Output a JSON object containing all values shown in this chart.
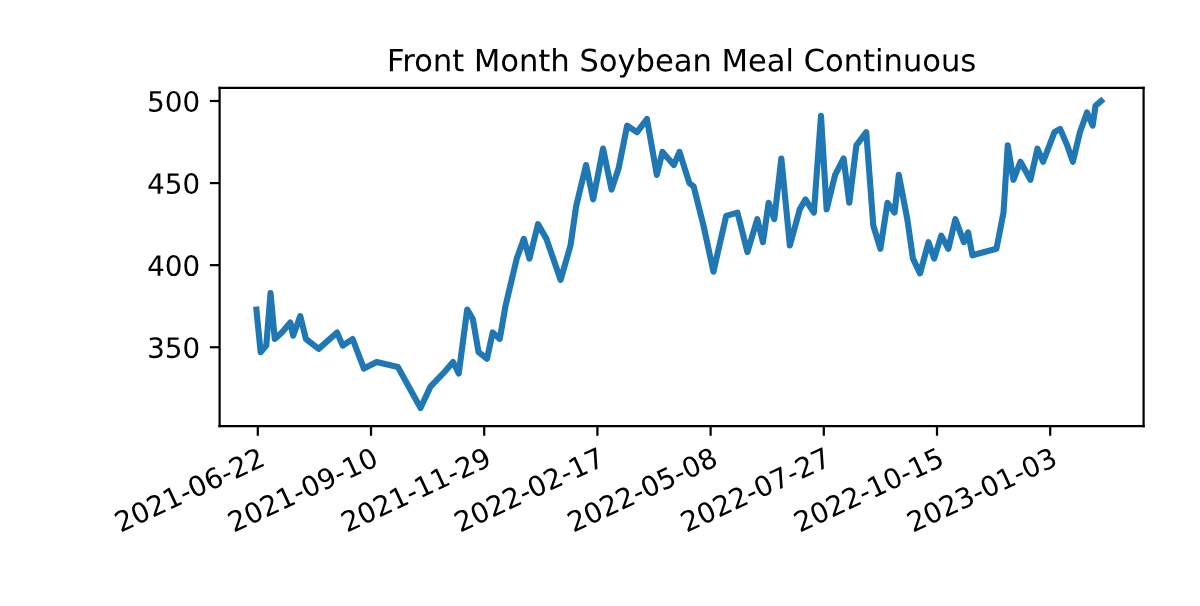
{
  "chart_data": {
    "type": "line",
    "title": "Front Month Soybean Meal Continuous",
    "x": [
      "2021-06-21",
      "2021-06-24",
      "2021-06-28",
      "2021-07-01",
      "2021-07-04",
      "2021-07-09",
      "2021-07-15",
      "2021-07-17",
      "2021-07-22",
      "2021-07-26",
      "2021-08-04",
      "2021-08-17",
      "2021-08-21",
      "2021-08-28",
      "2021-09-05",
      "2021-09-14",
      "2021-09-29",
      "2021-10-15",
      "2021-10-22",
      "2021-10-31",
      "2021-11-07",
      "2021-11-11",
      "2021-11-17",
      "2021-11-21",
      "2021-11-25",
      "2021-12-01",
      "2021-12-05",
      "2021-12-10",
      "2021-12-14",
      "2021-12-22",
      "2021-12-27",
      "2021-12-31",
      "2022-01-06",
      "2022-01-12",
      "2022-01-22",
      "2022-01-29",
      "2022-02-02",
      "2022-02-09",
      "2022-02-14",
      "2022-02-21",
      "2022-02-27",
      "2022-03-04",
      "2022-03-10",
      "2022-03-17",
      "2022-03-24",
      "2022-03-31",
      "2022-04-04",
      "2022-04-12",
      "2022-04-16",
      "2022-04-23",
      "2022-04-26",
      "2022-05-03",
      "2022-05-10",
      "2022-05-19",
      "2022-05-27",
      "2022-06-03",
      "2022-06-10",
      "2022-06-14",
      "2022-06-18",
      "2022-06-22",
      "2022-06-27",
      "2022-07-03",
      "2022-07-10",
      "2022-07-14",
      "2022-07-20",
      "2022-07-25",
      "2022-07-29",
      "2022-08-04",
      "2022-08-10",
      "2022-08-14",
      "2022-08-19",
      "2022-08-26",
      "2022-08-31",
      "2022-09-05",
      "2022-09-10",
      "2022-09-15",
      "2022-09-18",
      "2022-09-24",
      "2022-09-28",
      "2022-10-03",
      "2022-10-09",
      "2022-10-13",
      "2022-10-18",
      "2022-10-23",
      "2022-10-28",
      "2022-11-03",
      "2022-11-06",
      "2022-11-09",
      "2022-11-26",
      "2022-12-01",
      "2022-12-04",
      "2022-12-08",
      "2022-12-13",
      "2022-12-20",
      "2022-12-25",
      "2022-12-29",
      "2023-01-06",
      "2023-01-10",
      "2023-01-15",
      "2023-01-19",
      "2023-01-24",
      "2023-01-29",
      "2023-02-02",
      "2023-02-04",
      "2023-02-08"
    ],
    "series": [
      {
        "color": "#1f77b4",
        "values": [
          373,
          347,
          351,
          383,
          355,
          359,
          365,
          357,
          369,
          355,
          349,
          359,
          351,
          355,
          337,
          341,
          338,
          313,
          326,
          334,
          341,
          334,
          373,
          367,
          347,
          343,
          359,
          355,
          375,
          404,
          416,
          404,
          425,
          416,
          391,
          412,
          436,
          461,
          440,
          471,
          446,
          459,
          485,
          481,
          489,
          455,
          469,
          461,
          469,
          450,
          448,
          424,
          396,
          430,
          432,
          408,
          428,
          414,
          438,
          428,
          465,
          412,
          434,
          440,
          432,
          491,
          434,
          455,
          465,
          438,
          473,
          481,
          424,
          410,
          438,
          432,
          455,
          428,
          404,
          395,
          414,
          404,
          418,
          410,
          428,
          414,
          420,
          406,
          410,
          432,
          473,
          452,
          463,
          452,
          471,
          463,
          481,
          483,
          473,
          463,
          481,
          493,
          485,
          497,
          500
        ]
      }
    ],
    "xlim": [
      "2021-05-26",
      "2023-03-10"
    ],
    "xticks": [
      "2021-06-22",
      "2021-09-10",
      "2021-11-29",
      "2022-02-17",
      "2022-05-08",
      "2022-07-27",
      "2022-10-15",
      "2023-01-03"
    ],
    "ylim": [
      302,
      508
    ],
    "yticks": [
      350,
      400,
      450,
      500
    ],
    "grid": false,
    "legend": false,
    "marker": "none",
    "line_style": "solid"
  }
}
